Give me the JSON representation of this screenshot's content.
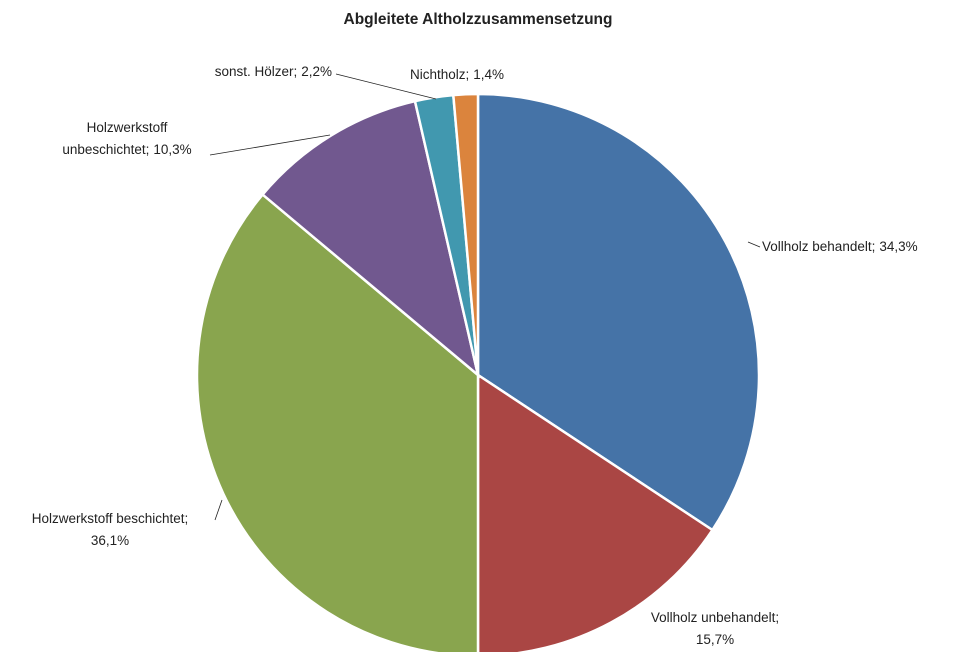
{
  "chart_data": {
    "type": "pie",
    "title": "Abgleitete Altholzzusammensetzung",
    "categories": [
      "Vollholz behandelt;",
      "Vollholz unbehandelt;",
      "Holzwerkstoff beschichtet;",
      "Holzwerkstoff unbeschichtet;",
      "sonst. Hölzer;",
      "Nichtholz;"
    ],
    "values": [
      34.3,
      15.7,
      36.1,
      10.3,
      2.2,
      1.4
    ],
    "value_labels": [
      "34,3%",
      "15,7%",
      "36,1%",
      "10,3%",
      "2,2%",
      "1,4%"
    ],
    "colors": [
      "#4573a7",
      "#aa4644",
      "#89a54e",
      "#71588f",
      "#4198af",
      "#db843d"
    ]
  }
}
